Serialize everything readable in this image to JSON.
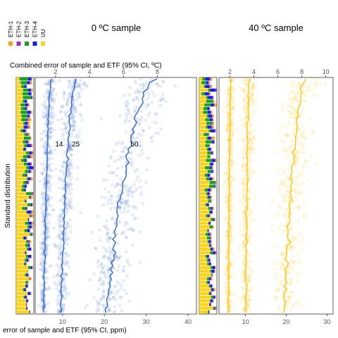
{
  "legend": {
    "items": [
      {
        "label": "ETH-1",
        "color": "#f5a21b"
      },
      {
        "label": "ETH-2",
        "color": "#9b30d0"
      },
      {
        "label": "ETH-3",
        "color": "#1aa31a"
      },
      {
        "label": "ETH-4",
        "color": "#1a1af0"
      },
      {
        "label": "UU",
        "color": "#ffd21a"
      }
    ]
  },
  "panels": [
    {
      "title": "0 ºC sample",
      "color": "#2f66c9"
    },
    {
      "title": "40 ºC sample",
      "color": "#ffc20e"
    }
  ],
  "labels": {
    "top_axis": "Combined error of sample and ETF (95% CI, ºC)",
    "bottom_axis": "error of sample and ETF (95% CI, ppm)",
    "y_axis": "Standard distribution"
  },
  "chart_data": {
    "type": "scatter",
    "panels": [
      {
        "title": "0 ºC sample",
        "x_top": {
          "label": "Combined error of sample and ETF (95% CI, ºC)",
          "ticks": [
            2,
            4,
            6,
            8
          ],
          "lim": [
            0.8,
            10.3
          ]
        },
        "x_bottom": {
          "label": "error of sample and ETF (95% CI, ppm)",
          "ticks": [
            10,
            20,
            30,
            40
          ],
          "lim": [
            3.5,
            42
          ]
        },
        "series": [
          {
            "name": "14",
            "ppm_start": 7.5,
            "ppm_end": 5.5
          },
          {
            "name": "25",
            "ppm_start": 13.5,
            "ppm_end": 9.5
          },
          {
            "name": "50",
            "ppm_start": 32.5,
            "ppm_end": 20.5
          }
        ],
        "annotations": [
          "14",
          "25",
          "50"
        ]
      },
      {
        "title": "40 ºC sample",
        "x_top": {
          "label": "",
          "ticks": [
            2,
            4,
            6,
            8,
            10
          ],
          "lim": [
            1.1,
            10.6
          ]
        },
        "x_bottom": {
          "label": "",
          "ticks": [
            10,
            20,
            30
          ],
          "lim": [
            3.5,
            31.5
          ]
        },
        "series": [
          {
            "name": "",
            "ppm_start": 6.5,
            "ppm_end": 5.8
          },
          {
            "name": "",
            "ppm_start": 11.0,
            "ppm_end": 10.0
          },
          {
            "name": "",
            "ppm_start": 25.0,
            "ppm_end": 19.5
          }
        ]
      }
    ],
    "ylabel": "Standard distribution",
    "grid": false
  }
}
